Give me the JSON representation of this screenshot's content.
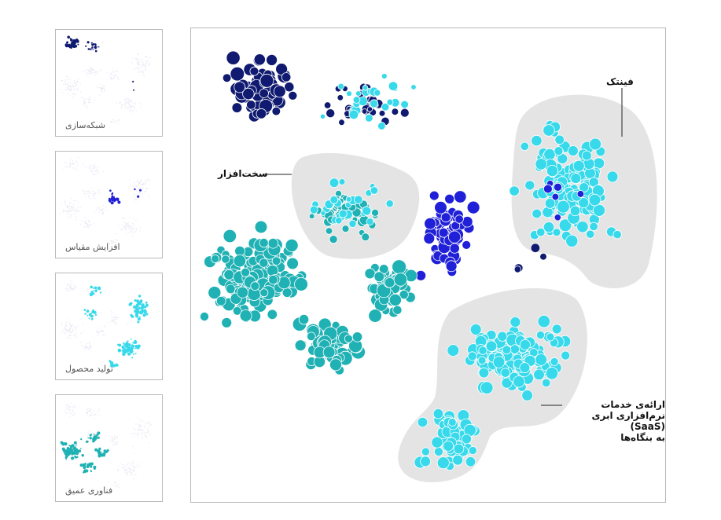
{
  "colors": {
    "networking": "#0f1a70",
    "scaling": "#2020d8",
    "product": "#37d9ea",
    "deeptech": "#1fb1b3",
    "region_fill": "#e4e4e4"
  },
  "thumbnails": [
    {
      "label": "شبکه‌سازی",
      "cluster": "networking"
    },
    {
      "label": "افزایش مقیاس",
      "cluster": "scaling"
    },
    {
      "label": "تولید محصول",
      "cluster": "product"
    },
    {
      "label": "فناوری عمیق",
      "cluster": "deeptech"
    }
  ],
  "annotations": {
    "fintech": "فینتک",
    "hardware": "سخت‌افزار",
    "saas": "ارائه‌ی خدمات\nنرم‌افزاری ابری (SaaS)\nبه بنگاه‌ها"
  },
  "chart_data": {
    "type": "scatter",
    "title": "",
    "xlabel": "",
    "ylabel": "",
    "grid": false,
    "legend": "none",
    "encoding": "bubble cluster map of companies; color = category, highlighted grey regions = sectors",
    "series": [
      {
        "name": "شبکه‌سازی",
        "color": "#0f1a70",
        "approx_points": 110,
        "region": "top-left"
      },
      {
        "name": "افزایش مقیاس",
        "color": "#2020d8",
        "approx_points": 70,
        "region": "center"
      },
      {
        "name": "تولید محصول",
        "color": "#37d9ea",
        "approx_points": 420,
        "region": "right and top-center"
      },
      {
        "name": "فناوری عمیق",
        "color": "#1fb1b3",
        "approx_points": 330,
        "region": "left and center"
      }
    ],
    "highlighted_regions": [
      {
        "label": "فینتک",
        "position": "right"
      },
      {
        "label": "سخت‌افزار",
        "position": "upper-left-center"
      },
      {
        "label": "ارائه‌ی خدمات نرم‌افزاری ابری (SaaS) به بنگاه‌ها",
        "position": "lower-right"
      }
    ]
  }
}
